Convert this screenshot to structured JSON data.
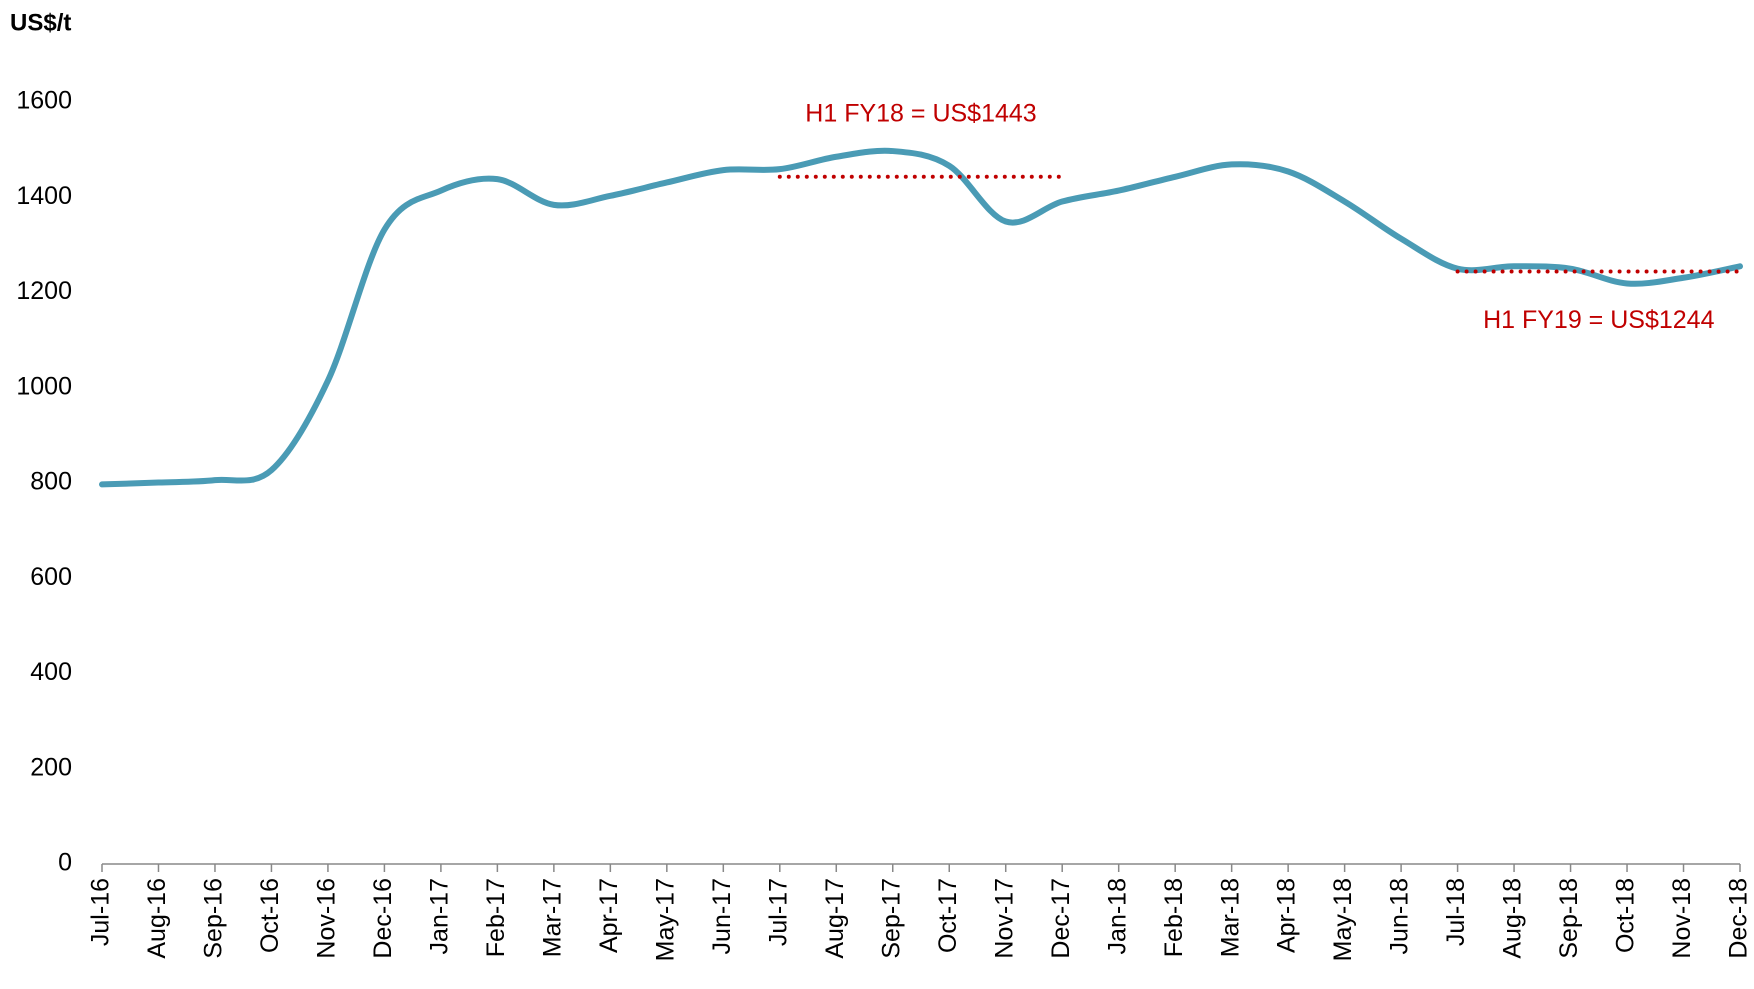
{
  "chart_data": {
    "type": "line",
    "y_axis_label": "US$/t",
    "categories": [
      "Jul-16",
      "Aug-16",
      "Sep-16",
      "Oct-16",
      "Nov-16",
      "Dec-16",
      "Jan-17",
      "Feb-17",
      "Mar-17",
      "Apr-17",
      "May-17",
      "Jun-17",
      "Jul-17",
      "Aug-17",
      "Sep-17",
      "Oct-17",
      "Nov-17",
      "Dec-17",
      "Jan-18",
      "Feb-18",
      "Mar-18",
      "Apr-18",
      "May-18",
      "Jun-18",
      "Jul-18",
      "Aug-18",
      "Sep-18",
      "Oct-18",
      "Nov-18",
      "Dec-18"
    ],
    "series": [
      {
        "color": "#4a9bb5",
        "values": [
          797,
          801,
          806,
          827,
          1015,
          1332,
          1414,
          1438,
          1384,
          1403,
          1431,
          1457,
          1459,
          1485,
          1497,
          1466,
          1349,
          1391,
          1414,
          1443,
          1469,
          1454,
          1391,
          1313,
          1250,
          1255,
          1250,
          1219,
          1231,
          1255
        ]
      }
    ],
    "ylim": [
      0,
      1600
    ],
    "yticks": [
      0,
      200,
      400,
      600,
      800,
      1000,
      1200,
      1400,
      1600
    ],
    "grid": false,
    "annotations": [
      {
        "text": "H1 FY18 = US$1443",
        "value": 1443,
        "from": "Jul-17",
        "to": "Dec-17",
        "color": "#c00000"
      },
      {
        "text": "H1 FY19 = US$1244",
        "value": 1244,
        "from": "Jul-18",
        "to": "Dec-18",
        "color": "#c00000"
      }
    ]
  }
}
